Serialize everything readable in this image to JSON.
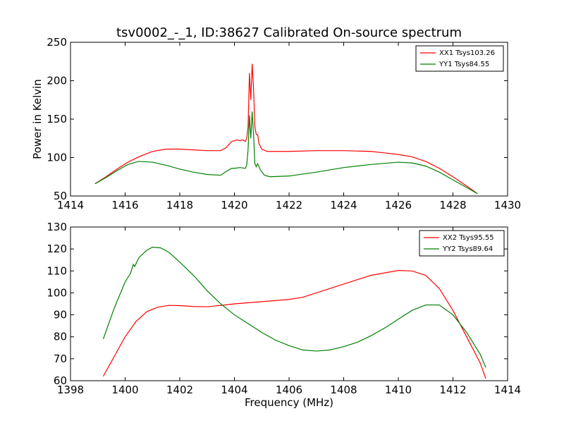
{
  "figure": {
    "title": "tsv0002_-_1, ID:38627 Calibrated On-source spectrum"
  },
  "chart_data": [
    {
      "type": "line",
      "title": "tsv0002_-_1, ID:38627 Calibrated On-source spectrum",
      "xlabel": "",
      "ylabel": "Power in Kelvin",
      "xlim": [
        1414,
        1430
      ],
      "ylim": [
        50,
        250
      ],
      "xticks": [
        1414,
        1416,
        1418,
        1420,
        1422,
        1424,
        1426,
        1428,
        1430
      ],
      "yticks": [
        50,
        100,
        150,
        200,
        250
      ],
      "legend_position": "top-right",
      "grid": false,
      "series": [
        {
          "name": "XX1 Tsys103.26",
          "color": "#ff0000",
          "points": [
            [
              1414.9,
              66
            ],
            [
              1415.3,
              75
            ],
            [
              1415.7,
              85
            ],
            [
              1416.1,
              94
            ],
            [
              1416.5,
              101
            ],
            [
              1417.0,
              108
            ],
            [
              1417.5,
              111
            ],
            [
              1418.0,
              111
            ],
            [
              1418.5,
              110
            ],
            [
              1419.0,
              109
            ],
            [
              1419.5,
              109
            ],
            [
              1419.7,
              113
            ],
            [
              1419.9,
              121
            ],
            [
              1420.0,
              122
            ],
            [
              1420.1,
              123
            ],
            [
              1420.2,
              122
            ],
            [
              1420.3,
              123
            ],
            [
              1420.4,
              121
            ],
            [
              1420.45,
              125
            ],
            [
              1420.5,
              140
            ],
            [
              1420.55,
              210
            ],
            [
              1420.6,
              175
            ],
            [
              1420.65,
              222
            ],
            [
              1420.7,
              190
            ],
            [
              1420.75,
              140
            ],
            [
              1420.8,
              130
            ],
            [
              1420.85,
              130
            ],
            [
              1420.9,
              118
            ],
            [
              1421.0,
              111
            ],
            [
              1421.2,
              108
            ],
            [
              1421.5,
              108
            ],
            [
              1422.0,
              108
            ],
            [
              1423.0,
              109
            ],
            [
              1424.0,
              109
            ],
            [
              1425.0,
              108
            ],
            [
              1425.5,
              106
            ],
            [
              1426.0,
              104
            ],
            [
              1426.5,
              101
            ],
            [
              1427.0,
              95
            ],
            [
              1427.5,
              86
            ],
            [
              1428.0,
              75
            ],
            [
              1428.5,
              63
            ],
            [
              1428.9,
              53
            ]
          ]
        },
        {
          "name": "YY1 Tsys84.55",
          "color": "#008000",
          "points": [
            [
              1414.9,
              66
            ],
            [
              1415.3,
              74
            ],
            [
              1415.7,
              83
            ],
            [
              1416.1,
              91
            ],
            [
              1416.5,
              95
            ],
            [
              1417.0,
              94
            ],
            [
              1417.5,
              90
            ],
            [
              1418.0,
              85
            ],
            [
              1418.5,
              81
            ],
            [
              1419.0,
              78
            ],
            [
              1419.5,
              77
            ],
            [
              1419.7,
              82
            ],
            [
              1419.9,
              86
            ],
            [
              1420.0,
              86
            ],
            [
              1420.2,
              87
            ],
            [
              1420.4,
              86
            ],
            [
              1420.45,
              90
            ],
            [
              1420.5,
              110
            ],
            [
              1420.55,
              155
            ],
            [
              1420.6,
              125
            ],
            [
              1420.65,
              160
            ],
            [
              1420.7,
              130
            ],
            [
              1420.75,
              92
            ],
            [
              1420.8,
              88
            ],
            [
              1420.85,
              92
            ],
            [
              1420.95,
              84
            ],
            [
              1421.1,
              77
            ],
            [
              1421.3,
              75
            ],
            [
              1422.0,
              76
            ],
            [
              1423.0,
              81
            ],
            [
              1424.0,
              87
            ],
            [
              1425.0,
              91
            ],
            [
              1426.0,
              94
            ],
            [
              1426.5,
              93
            ],
            [
              1427.0,
              89
            ],
            [
              1427.5,
              81
            ],
            [
              1428.0,
              71
            ],
            [
              1428.5,
              61
            ],
            [
              1428.9,
              53
            ]
          ]
        }
      ]
    },
    {
      "type": "line",
      "title": "",
      "xlabel": "Frequency (MHz)",
      "ylabel": "",
      "xlim": [
        1398,
        1414
      ],
      "ylim": [
        60,
        130
      ],
      "xticks": [
        1398,
        1400,
        1402,
        1404,
        1406,
        1408,
        1410,
        1412,
        1414
      ],
      "yticks": [
        60,
        70,
        80,
        90,
        100,
        110,
        120,
        130
      ],
      "legend_position": "top-right",
      "grid": false,
      "series": [
        {
          "name": "XX2 Tsys95.55",
          "color": "#ff0000",
          "points": [
            [
              1399.2,
              62
            ],
            [
              1399.6,
              71
            ],
            [
              1400.0,
              80
            ],
            [
              1400.4,
              87
            ],
            [
              1400.8,
              91.5
            ],
            [
              1401.2,
              93.5
            ],
            [
              1401.6,
              94.3
            ],
            [
              1402.0,
              94.2
            ],
            [
              1402.5,
              93.8
            ],
            [
              1403.0,
              93.7
            ],
            [
              1403.5,
              94.3
            ],
            [
              1404.0,
              95
            ],
            [
              1405.0,
              96
            ],
            [
              1406.0,
              97
            ],
            [
              1406.5,
              98
            ],
            [
              1407.0,
              100
            ],
            [
              1408.0,
              104
            ],
            [
              1409.0,
              108
            ],
            [
              1410.0,
              110.2
            ],
            [
              1410.5,
              110
            ],
            [
              1411.0,
              108
            ],
            [
              1411.5,
              102
            ],
            [
              1412.0,
              92
            ],
            [
              1412.5,
              80
            ],
            [
              1413.0,
              68
            ],
            [
              1413.2,
              61
            ]
          ]
        },
        {
          "name": "YY2 Tsys89.64",
          "color": "#008000",
          "points": [
            [
              1399.2,
              79
            ],
            [
              1399.6,
              93
            ],
            [
              1400.0,
              105
            ],
            [
              1400.2,
              109
            ],
            [
              1400.3,
              113
            ],
            [
              1400.35,
              112
            ],
            [
              1400.5,
              116
            ],
            [
              1400.8,
              119.5
            ],
            [
              1401.0,
              120.8
            ],
            [
              1401.3,
              120.5
            ],
            [
              1401.6,
              118.5
            ],
            [
              1402.0,
              114
            ],
            [
              1402.5,
              108
            ],
            [
              1403.0,
              101
            ],
            [
              1403.5,
              95
            ],
            [
              1404.0,
              90
            ],
            [
              1404.5,
              86
            ],
            [
              1405.0,
              82
            ],
            [
              1405.5,
              78.5
            ],
            [
              1406.0,
              76
            ],
            [
              1406.5,
              74
            ],
            [
              1407.0,
              73.5
            ],
            [
              1407.5,
              74
            ],
            [
              1408.0,
              75.5
            ],
            [
              1408.5,
              77.5
            ],
            [
              1409.0,
              80.5
            ],
            [
              1409.5,
              84
            ],
            [
              1410.0,
              88
            ],
            [
              1410.5,
              92
            ],
            [
              1411.0,
              94.5
            ],
            [
              1411.5,
              94.5
            ],
            [
              1412.0,
              90
            ],
            [
              1412.5,
              82
            ],
            [
              1413.0,
              72
            ],
            [
              1413.2,
              66
            ]
          ]
        }
      ]
    }
  ]
}
